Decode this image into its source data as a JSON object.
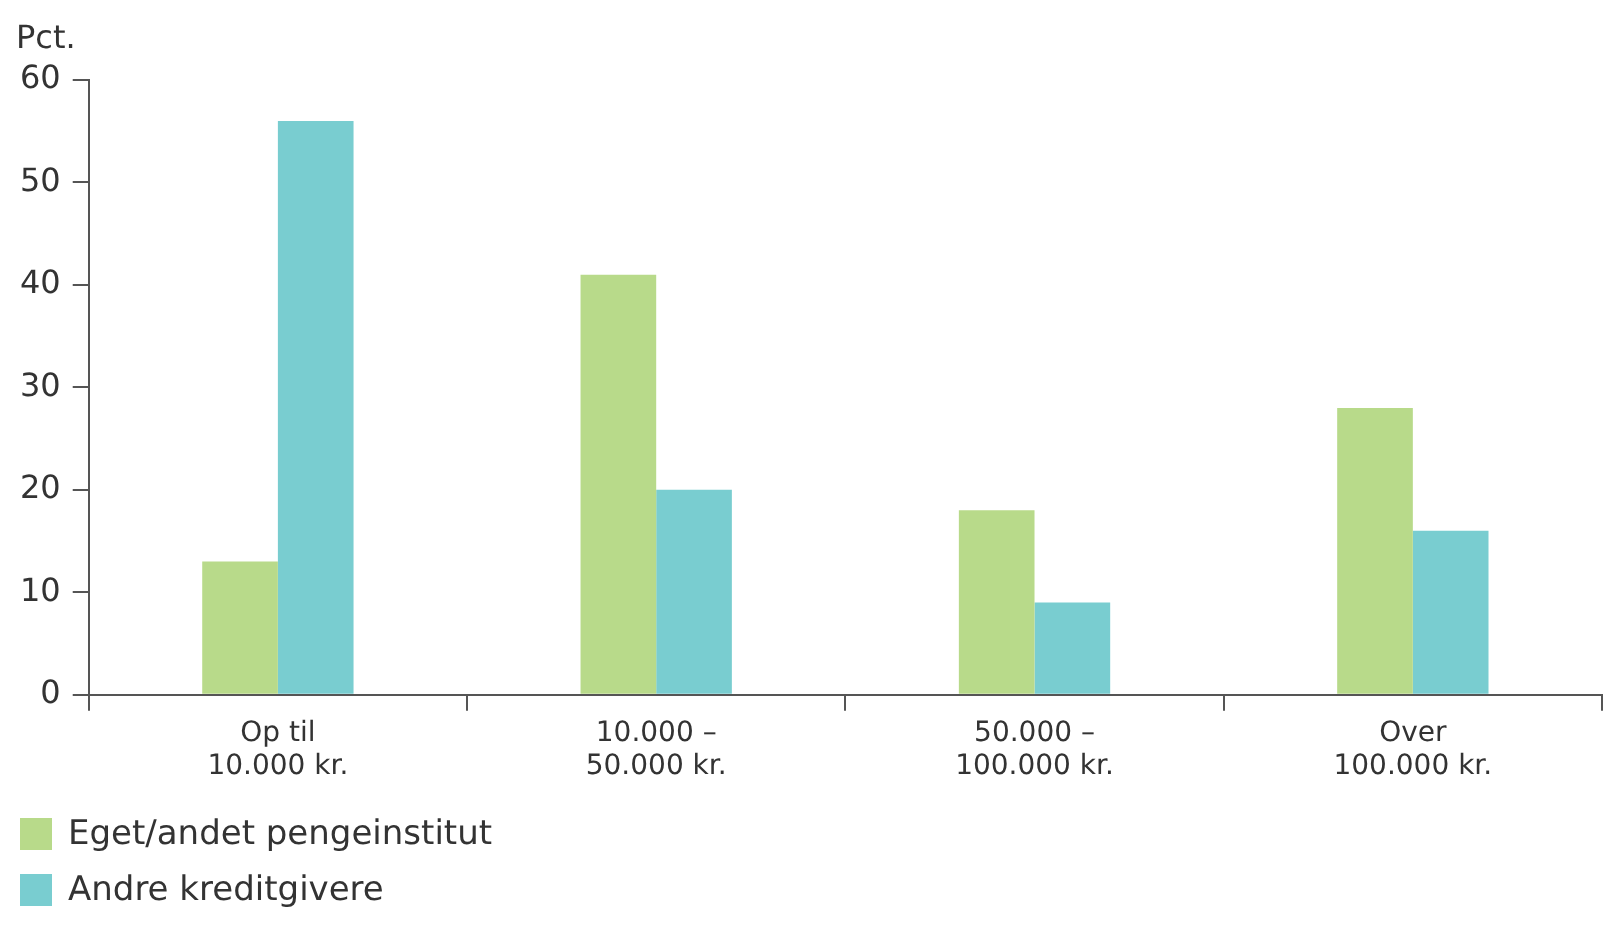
{
  "chart_data": {
    "type": "bar",
    "ylabel": "Pct.",
    "categories": [
      "Op til\n10.000 kr.",
      "10.000 –\n50.000 kr.",
      "50.000 –\n100.000 kr.",
      "Over\n100.000 kr."
    ],
    "series": [
      {
        "name": "Eget/andet pengeinstitut",
        "color": "#b8da8a",
        "values": [
          13,
          41,
          18,
          28
        ]
      },
      {
        "name": "Andre kreditgivere",
        "color": "#79cdd0",
        "values": [
          56,
          20,
          9,
          16
        ]
      }
    ],
    "ylim": [
      0,
      60
    ],
    "yticks": [
      0,
      10,
      20,
      30,
      40,
      50,
      60
    ],
    "grid": false,
    "legend": "bottom"
  }
}
